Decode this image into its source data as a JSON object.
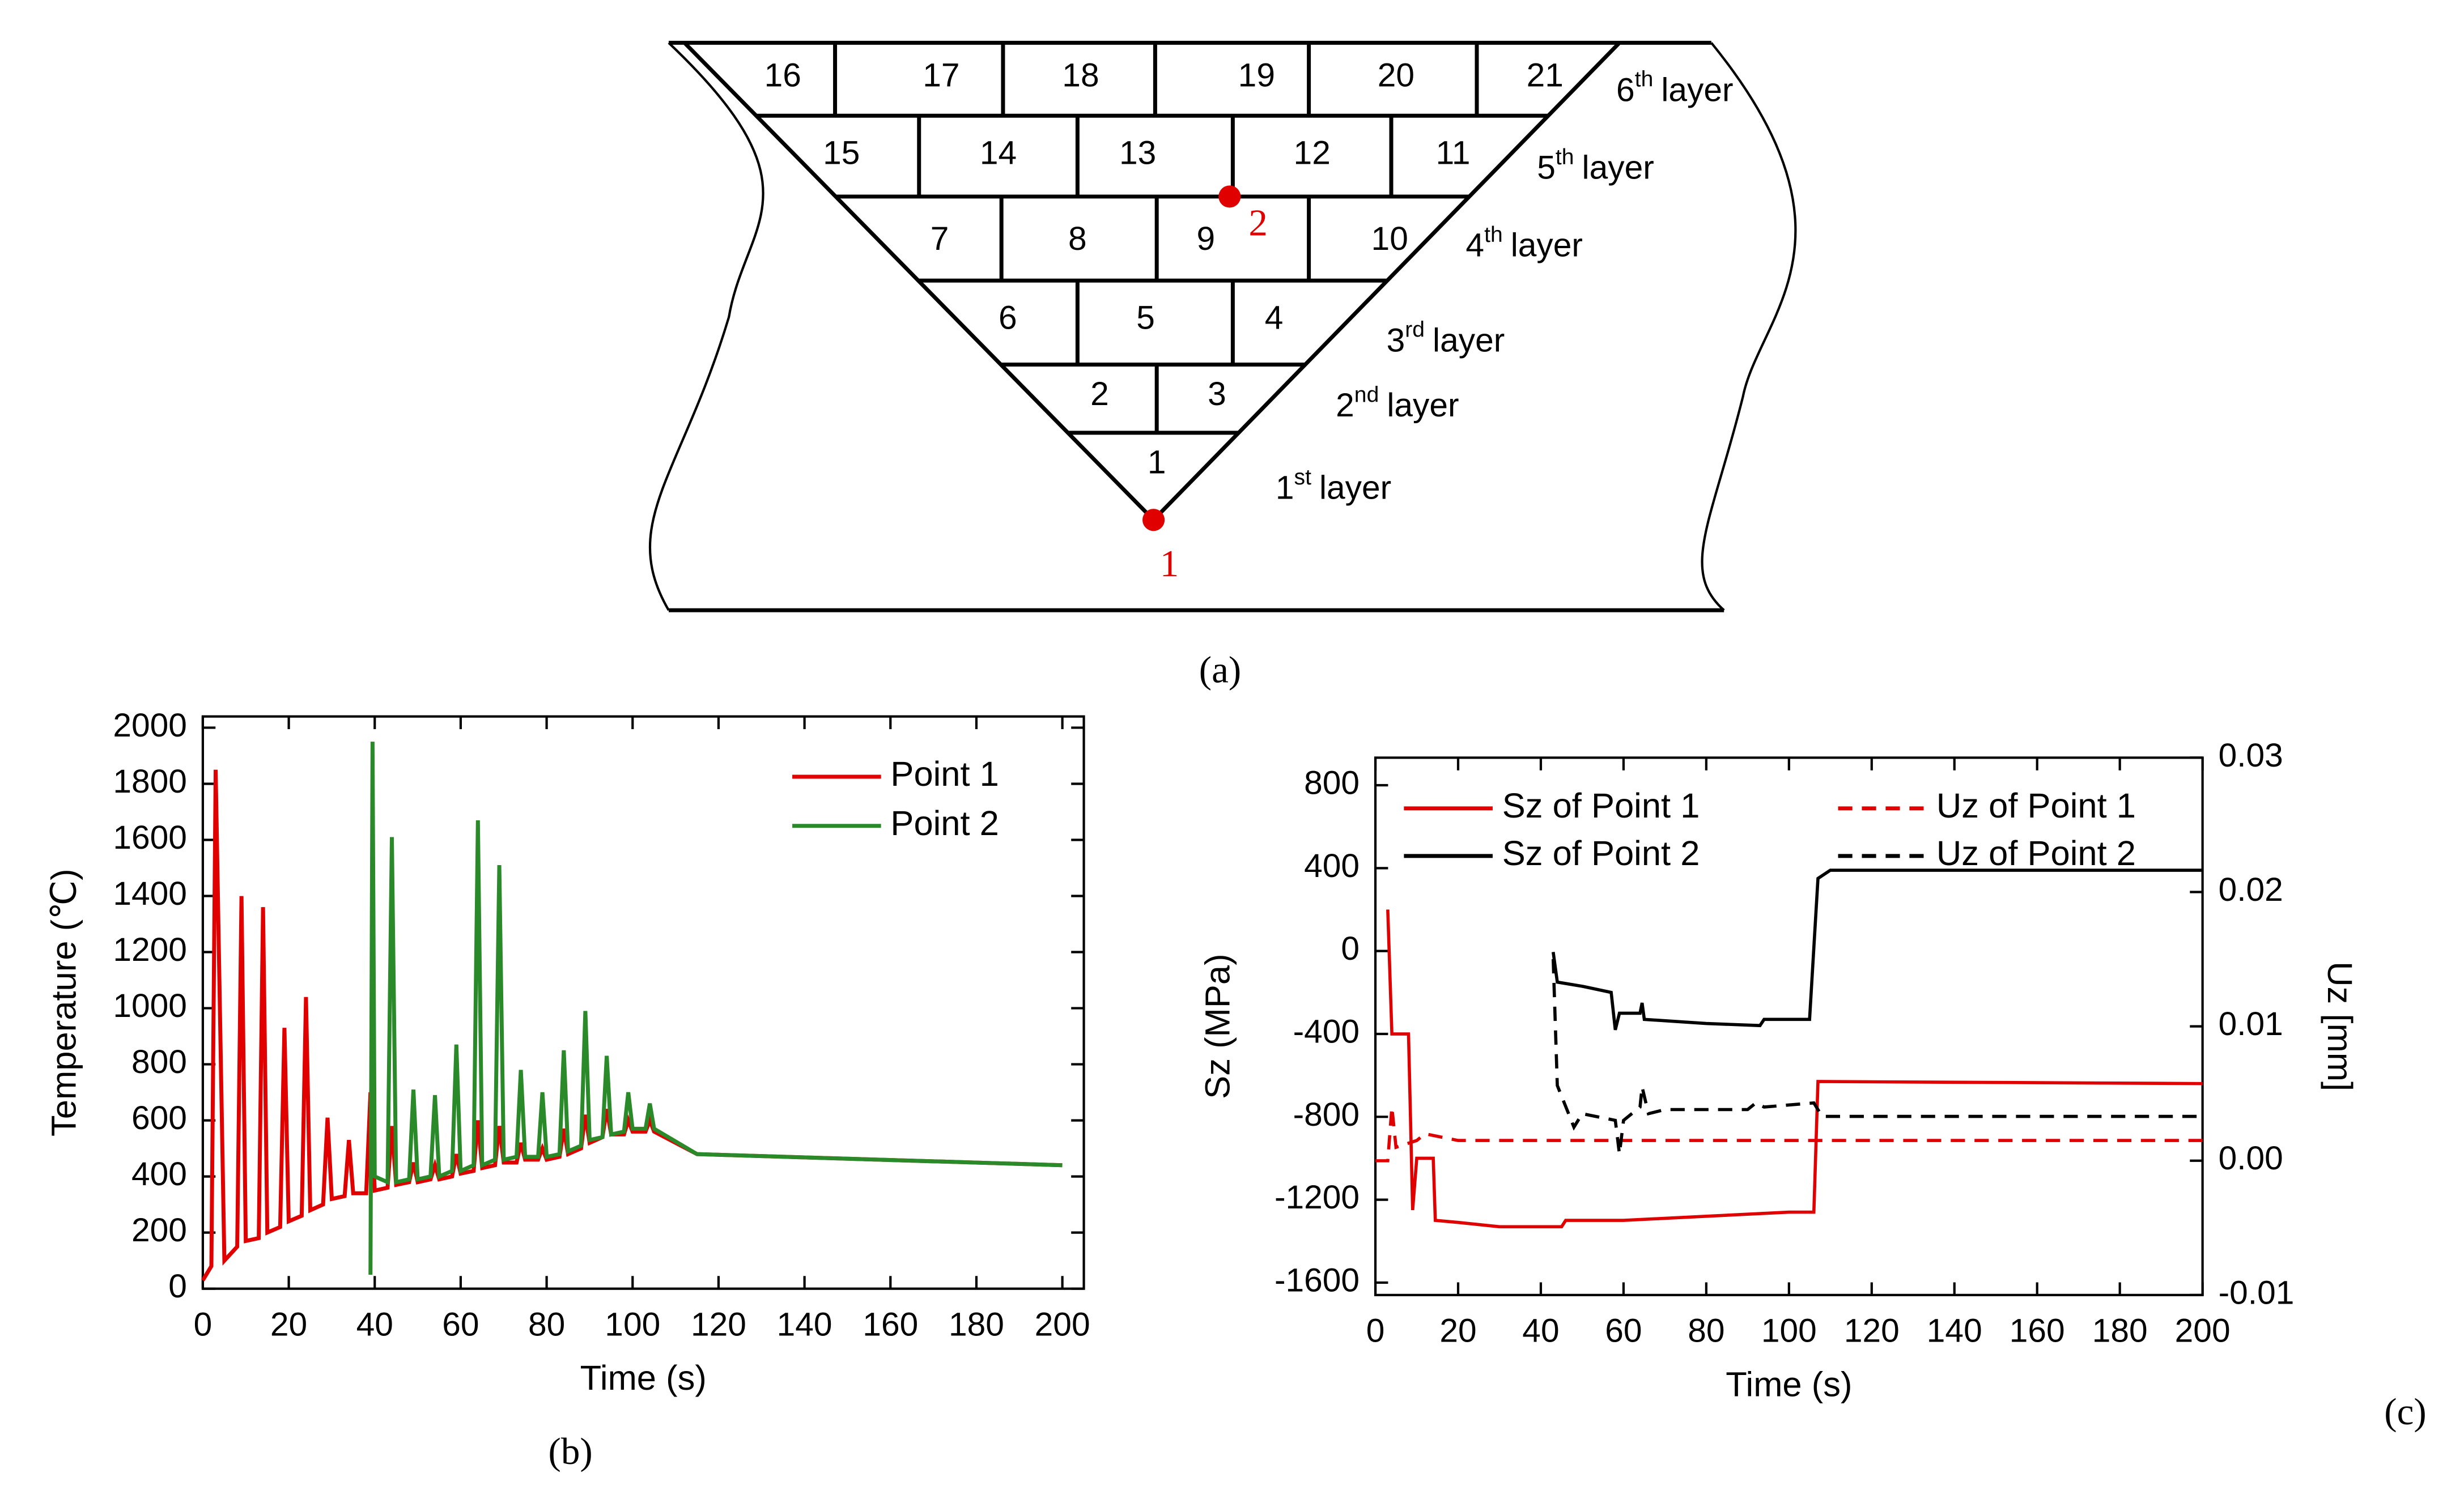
{
  "diagram": {
    "cells": [
      "1",
      "2",
      "3",
      "4",
      "5",
      "6",
      "7",
      "8",
      "9",
      "10",
      "11",
      "12",
      "13",
      "14",
      "15",
      "16",
      "17",
      "18",
      "19",
      "20",
      "21"
    ],
    "layers": [
      {
        "num": "1",
        "suffix": "st",
        "word": "layer"
      },
      {
        "num": "2",
        "suffix": "nd",
        "word": "layer"
      },
      {
        "num": "3",
        "suffix": "rd",
        "word": "layer"
      },
      {
        "num": "4",
        "suffix": "th",
        "word": "layer"
      },
      {
        "num": "5",
        "suffix": "th",
        "word": "layer"
      },
      {
        "num": "6",
        "suffix": "th",
        "word": "layer"
      }
    ],
    "points": [
      "1",
      "2"
    ]
  },
  "captions": [
    "(a)",
    "(b)",
    "(c)"
  ],
  "chart_data": [
    {
      "type": "line",
      "xlabel": "Time (s)",
      "ylabel": "Temperature (℃)",
      "xlim": [
        0,
        205
      ],
      "ylim": [
        0,
        2040
      ],
      "xticks": [
        0,
        20,
        40,
        60,
        80,
        100,
        120,
        140,
        160,
        180,
        200
      ],
      "yticks": [
        0,
        200,
        400,
        600,
        800,
        1000,
        1200,
        1400,
        1600,
        1800,
        2000
      ],
      "legend": "upper right",
      "series": [
        {
          "name": "Point 1",
          "color": "#e00000",
          "style": "solid",
          "x": [
            0,
            2,
            3,
            5,
            8,
            9,
            10,
            13,
            14,
            15,
            18,
            19,
            20,
            23,
            24,
            25,
            28,
            29,
            30,
            33,
            34,
            35,
            38,
            39,
            40,
            43,
            44,
            45,
            48,
            49,
            50,
            53,
            54,
            55,
            58,
            59,
            60,
            63,
            64,
            65,
            68,
            69,
            70,
            73,
            74,
            75,
            78,
            79,
            80,
            83,
            84,
            85,
            88,
            89,
            90,
            93,
            94,
            95,
            98,
            99,
            100,
            103,
            104,
            105,
            115,
            200
          ],
          "values": [
            30,
            80,
            1850,
            100,
            150,
            1400,
            170,
            180,
            1360,
            200,
            220,
            930,
            240,
            260,
            1040,
            280,
            300,
            610,
            320,
            330,
            530,
            340,
            340,
            700,
            350,
            360,
            580,
            370,
            380,
            450,
            380,
            390,
            440,
            390,
            400,
            480,
            410,
            420,
            600,
            430,
            440,
            580,
            450,
            450,
            520,
            460,
            460,
            500,
            460,
            470,
            570,
            480,
            500,
            620,
            520,
            540,
            640,
            550,
            550,
            600,
            560,
            560,
            600,
            560,
            480,
            440
          ]
        },
        {
          "name": "Point 2",
          "color": "#2a8a2a",
          "style": "solid",
          "x": [
            39,
            39.5,
            40,
            43,
            44,
            45,
            48,
            49,
            50,
            53,
            54,
            55,
            58,
            59,
            60,
            63,
            64,
            65,
            68,
            69,
            70,
            73,
            74,
            75,
            78,
            79,
            80,
            83,
            84,
            85,
            88,
            89,
            90,
            93,
            94,
            95,
            98,
            99,
            100,
            103,
            104,
            105,
            115,
            200
          ],
          "values": [
            50,
            1950,
            400,
            380,
            1610,
            380,
            390,
            710,
            390,
            400,
            690,
            400,
            420,
            870,
            420,
            440,
            1670,
            440,
            460,
            1510,
            460,
            470,
            780,
            470,
            470,
            700,
            470,
            480,
            850,
            490,
            510,
            990,
            530,
            540,
            830,
            550,
            560,
            700,
            570,
            570,
            660,
            570,
            480,
            440
          ]
        }
      ]
    },
    {
      "type": "line",
      "xlabel": "Time (s)",
      "ylabel": "Sz (MPa)",
      "y2label": "Uz [mm]",
      "xlim": [
        0,
        200
      ],
      "ylim": [
        -1660,
        933
      ],
      "y2lim": [
        -0.01,
        0.03
      ],
      "xticks": [
        0,
        20,
        40,
        60,
        80,
        100,
        120,
        140,
        160,
        180,
        200
      ],
      "yticks": [
        -1600,
        -1200,
        -800,
        -400,
        0,
        400,
        800
      ],
      "y2ticks": [
        -0.01,
        {
          "value": 0,
          "label": "0.00"
        },
        0.01,
        0.02,
        0.03
      ],
      "legend": "upper",
      "series": [
        {
          "name": "Sz of Point 1",
          "color": "#e00000",
          "style": "solid",
          "x": [
            3,
            4,
            8,
            9,
            10,
            14,
            14.5,
            20,
            30,
            45,
            46,
            60,
            80,
            100,
            106,
            107,
            200
          ],
          "values": [
            200,
            -400,
            -400,
            -1250,
            -1000,
            -1000,
            -1300,
            -1310,
            -1330,
            -1330,
            -1300,
            -1300,
            -1280,
            -1260,
            -1260,
            -630,
            -640
          ]
        },
        {
          "name": "Sz of Point 2",
          "color": "#000000",
          "style": "solid",
          "x": [
            43,
            44,
            50,
            57,
            58,
            59,
            64,
            64.5,
            65,
            80,
            93,
            94,
            105,
            107,
            110,
            200
          ],
          "values": [
            -5,
            -150,
            -170,
            -200,
            -380,
            -300,
            -300,
            -250,
            -330,
            -350,
            -360,
            -330,
            -330,
            350,
            390,
            390
          ]
        },
        {
          "name": "Uz of Point 1",
          "color": "#e00000",
          "style": "dashed",
          "axis": "y2",
          "x": [
            0,
            3,
            4,
            5,
            10,
            12,
            20,
            200
          ],
          "values": [
            0,
            0,
            0.004,
            0.001,
            0.0015,
            0.002,
            0.0015,
            0.0015
          ]
        },
        {
          "name": "Uz of Point 2",
          "color": "#000000",
          "style": "dashed",
          "axis": "y2",
          "x": [
            43,
            44,
            48,
            50,
            58,
            59,
            60,
            64,
            64.5,
            66,
            70,
            90,
            92,
            94,
            106,
            108,
            200
          ],
          "values": [
            0.015,
            0.0056,
            0.0025,
            0.0035,
            0.003,
            0.0005,
            0.003,
            0.004,
            0.0055,
            0.0035,
            0.0038,
            0.0038,
            0.0043,
            0.004,
            0.0043,
            0.0033,
            0.0033
          ]
        }
      ]
    }
  ]
}
